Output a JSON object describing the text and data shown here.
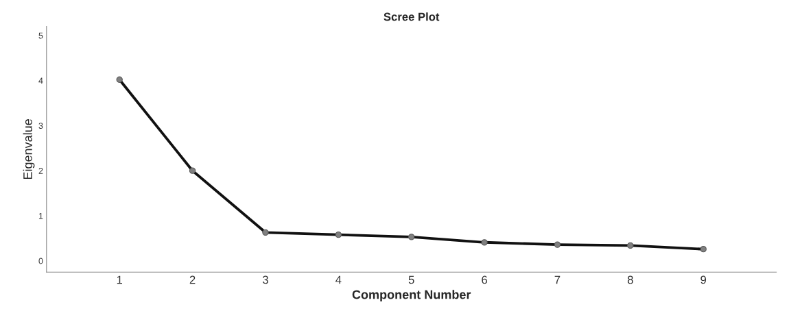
{
  "chart_data": {
    "type": "line",
    "title": "Scree Plot",
    "xlabel": "Component Number",
    "ylabel": "Eigenvalue",
    "x": [
      1,
      2,
      3,
      4,
      5,
      6,
      7,
      8,
      9
    ],
    "series": [
      {
        "color": "#111111",
        "values": [
          4.02,
          2.0,
          0.63,
          0.58,
          0.53,
          0.41,
          0.36,
          0.34,
          0.26
        ]
      }
    ],
    "xlim": [
      0,
      10
    ],
    "xticks": [
      1,
      2,
      3,
      4,
      5,
      6,
      7,
      8,
      9
    ],
    "ylim": [
      -0.25,
      5.2
    ],
    "yticks": [
      0,
      1,
      2,
      3,
      4,
      5
    ],
    "marker": "circle",
    "line_style": "solid",
    "grid": false,
    "legend": false
  }
}
